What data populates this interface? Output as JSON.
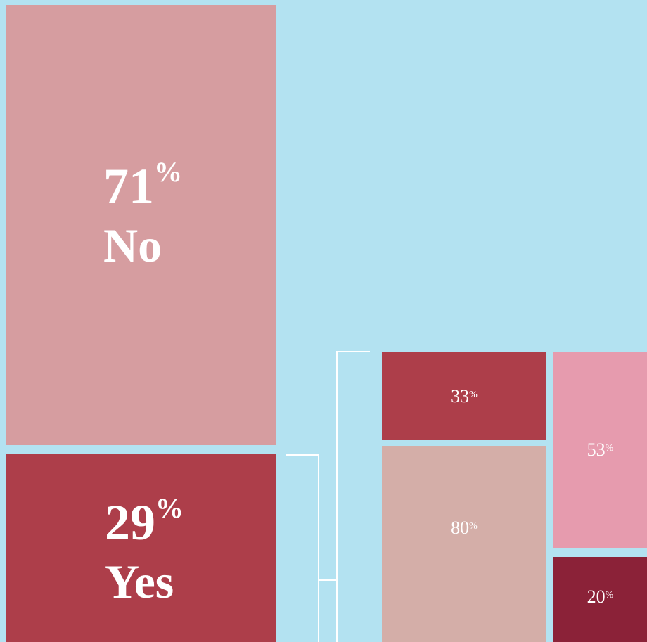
{
  "unit": "%",
  "main": [
    {
      "value": 71,
      "label": "No"
    },
    {
      "value": 29,
      "label": "Yes"
    }
  ],
  "breakdown": [
    {
      "value": 33
    },
    {
      "value": 80
    },
    {
      "value": 53
    },
    {
      "value": 20
    }
  ]
}
